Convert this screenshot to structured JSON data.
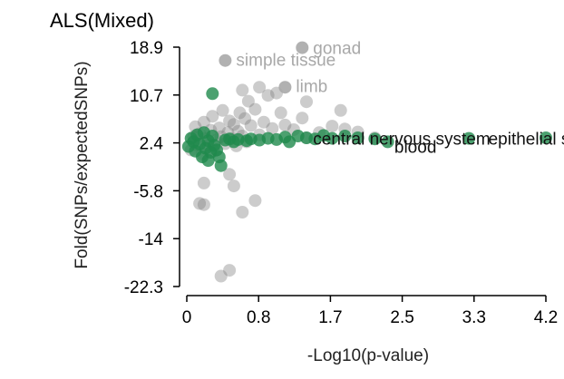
{
  "chart_data": {
    "type": "scatter",
    "title": "ALS(Mixed)",
    "xlabel": "-Log10(p-value)",
    "ylabel": "Fold(SNPs/expectedSNPs)",
    "xlim": [
      0,
      4.2
    ],
    "ylim": [
      -22.3,
      18.9
    ],
    "xticks": [
      "0",
      "0.8",
      "1.7",
      "2.5",
      "3.3",
      "4.2"
    ],
    "xtick_values": [
      0,
      0.84,
      1.68,
      2.52,
      3.36,
      4.2
    ],
    "yticks": [
      "18.9",
      "10.7",
      "2.4",
      "-5.8",
      "-14",
      "-22.3"
    ],
    "ytick_values": [
      18.9,
      10.66,
      2.42,
      -5.82,
      -14.06,
      -22.3
    ],
    "grid": false,
    "colors": {
      "significant": "#1f8a4c",
      "nonsignificant": "#7f7f7f",
      "label_gray": "#a8a8a8",
      "label_dark": "#111111"
    },
    "series": [
      {
        "name": "nonsignificant",
        "points": [
          [
            0.05,
            1.2
          ],
          [
            0.08,
            3.5
          ],
          [
            0.1,
            5.2
          ],
          [
            0.12,
            2.0
          ],
          [
            0.15,
            4.0
          ],
          [
            0.18,
            0.5
          ],
          [
            0.2,
            6.0
          ],
          [
            0.22,
            3.2
          ],
          [
            0.25,
            2.0
          ],
          [
            0.28,
            4.6
          ],
          [
            0.3,
            7.0
          ],
          [
            0.32,
            1.0
          ],
          [
            0.35,
            2.9
          ],
          [
            0.38,
            5.0
          ],
          [
            0.4,
            3.5
          ],
          [
            0.42,
            8.0
          ],
          [
            0.45,
            2.3
          ],
          [
            0.48,
            4.2
          ],
          [
            0.5,
            6.2
          ],
          [
            0.52,
            3.1
          ],
          [
            0.55,
            5.6
          ],
          [
            0.58,
            1.9
          ],
          [
            0.6,
            4.4
          ],
          [
            0.62,
            7.6
          ],
          [
            0.65,
            3.6
          ],
          [
            0.68,
            6.6
          ],
          [
            0.7,
            2.6
          ],
          [
            0.72,
            9.6
          ],
          [
            0.75,
            5.4
          ],
          [
            0.8,
            8.2
          ],
          [
            0.85,
            3.8
          ],
          [
            0.9,
            6.0
          ],
          [
            0.95,
            10.6
          ],
          [
            1.0,
            4.9
          ],
          [
            1.1,
            7.6
          ],
          [
            1.15,
            5.5
          ],
          [
            1.25,
            4.7
          ],
          [
            1.35,
            6.7
          ],
          [
            1.4,
            3.3
          ],
          [
            1.55,
            4.2
          ],
          [
            1.7,
            5.3
          ],
          [
            1.85,
            4.8
          ],
          [
            2.0,
            4.3
          ],
          [
            2.2,
            3.3
          ],
          [
            0.2,
            -4.5
          ],
          [
            0.15,
            -8.0
          ],
          [
            0.2,
            -8.2
          ],
          [
            0.5,
            -3.0
          ],
          [
            0.55,
            -5.0
          ],
          [
            0.8,
            -7.5
          ],
          [
            0.65,
            -9.5
          ],
          [
            0.4,
            -20.5
          ],
          [
            0.5,
            -19.5
          ],
          [
            0.65,
            11.5
          ],
          [
            0.85,
            12.0
          ],
          [
            1.05,
            11.0
          ],
          [
            1.4,
            9.5
          ],
          [
            1.8,
            8.0
          ]
        ]
      },
      {
        "name": "significant",
        "points": [
          [
            0.02,
            1.8
          ],
          [
            0.05,
            3.2
          ],
          [
            0.08,
            2.6
          ],
          [
            0.1,
            1.0
          ],
          [
            0.12,
            3.8
          ],
          [
            0.15,
            2.2
          ],
          [
            0.18,
            0.0
          ],
          [
            0.2,
            4.2
          ],
          [
            0.22,
            1.5
          ],
          [
            0.25,
            2.8
          ],
          [
            0.28,
            0.8
          ],
          [
            0.3,
            3.6
          ],
          [
            0.32,
            2.0
          ],
          [
            0.35,
            1.2
          ],
          [
            0.38,
            0.0
          ],
          [
            0.4,
            -1.5
          ],
          [
            0.45,
            2.9
          ],
          [
            0.5,
            3.1
          ],
          [
            0.55,
            2.6
          ],
          [
            0.6,
            3.0
          ],
          [
            0.7,
            2.8
          ],
          [
            0.75,
            3.1
          ],
          [
            0.85,
            2.9
          ],
          [
            0.95,
            3.2
          ],
          [
            1.05,
            3.0
          ],
          [
            1.15,
            3.4
          ],
          [
            1.2,
            2.6
          ],
          [
            1.3,
            3.6
          ],
          [
            1.4,
            3.3
          ],
          [
            1.5,
            3.1
          ],
          [
            1.6,
            3.7
          ],
          [
            1.7,
            3.2
          ],
          [
            1.85,
            3.6
          ],
          [
            2.0,
            3.3
          ],
          [
            2.2,
            3.1
          ],
          [
            2.35,
            2.6
          ],
          [
            3.3,
            3.2
          ],
          [
            4.2,
            3.3
          ],
          [
            0.25,
            -0.6
          ],
          [
            0.3,
            10.9
          ]
        ]
      }
    ],
    "annotations": [
      {
        "text": "gonad",
        "x": 1.35,
        "y": 18.8,
        "style": "gray"
      },
      {
        "text": "simple tissue",
        "x": 0.45,
        "y": 16.8,
        "style": "gray"
      },
      {
        "text": "limb",
        "x": 1.15,
        "y": 12.3,
        "style": "gray"
      },
      {
        "text": "central nervous system",
        "x": 1.35,
        "y": 3.2,
        "style": "dark"
      },
      {
        "text": "blood",
        "x": 2.3,
        "y": 1.8,
        "style": "dark"
      },
      {
        "text": "epithelial structure",
        "x": 3.4,
        "y": 3.2,
        "style": "dark"
      }
    ],
    "highlighted_points": [
      {
        "x": 1.35,
        "y": 18.8,
        "group": "nonsignificant"
      },
      {
        "x": 0.45,
        "y": 16.6,
        "group": "nonsignificant"
      },
      {
        "x": 1.15,
        "y": 12.0,
        "group": "nonsignificant"
      }
    ]
  }
}
